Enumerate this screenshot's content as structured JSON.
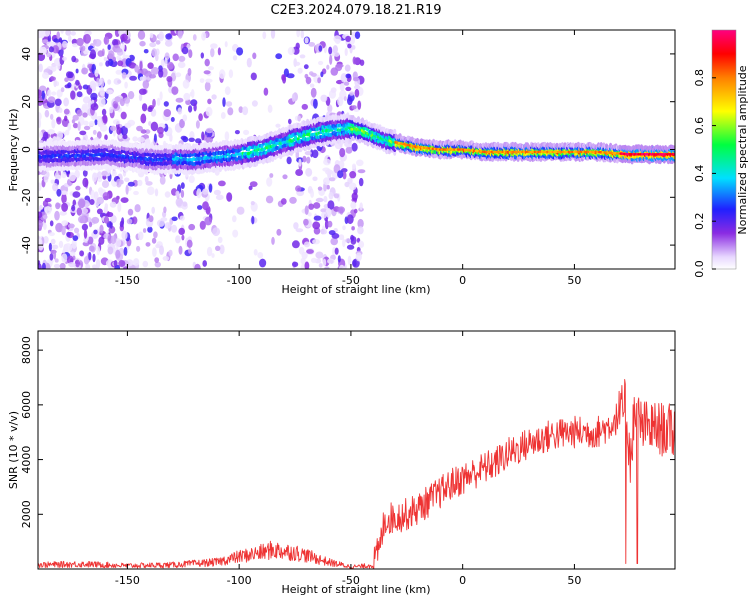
{
  "figure": {
    "title": "C2E3.2024.079.18.21.R19"
  },
  "chart_data": [
    {
      "type": "heatmap",
      "name": "spectrogram",
      "xlabel": "Height of straight line (km)",
      "ylabel": "Frequency (Hz)",
      "xlim": [
        -190,
        95
      ],
      "ylim": [
        -50,
        50
      ],
      "xticks": [
        -150,
        -100,
        -50,
        0,
        50
      ],
      "yticks": [
        -40,
        -20,
        0,
        20,
        40
      ],
      "colorbar": {
        "label": "Normalized spectral amplitude",
        "range": [
          0.0,
          1.0
        ],
        "ticks": [
          0.0,
          0.2,
          0.4,
          0.6,
          0.8
        ]
      },
      "ridge_frequency_hz": {
        "x": [
          -190,
          -160,
          -140,
          -120,
          -100,
          -90,
          -80,
          -70,
          -60,
          -50,
          -45,
          -40,
          -35,
          -30,
          -20,
          -10,
          0,
          10,
          20,
          40,
          60,
          75,
          95
        ],
        "y": [
          -3,
          -2,
          -4,
          -4,
          -2,
          0,
          3,
          6,
          8,
          9,
          8,
          6,
          4,
          3,
          1,
          0,
          0,
          -1,
          -1,
          -1,
          -1,
          -2,
          -2
        ]
      }
    },
    {
      "type": "line",
      "name": "snr",
      "xlabel": "Height of straight line (km)",
      "ylabel": "SNR (10 * v/v)",
      "xlim": [
        -190,
        95
      ],
      "ylim": [
        0,
        8700
      ],
      "xticks": [
        -150,
        -100,
        -50,
        0,
        50
      ],
      "yticks": [
        2000,
        4000,
        6000,
        8000
      ],
      "series": [
        {
          "name": "SNR",
          "color": "#ee3333",
          "x": [
            -190,
            -170,
            -150,
            -130,
            -110,
            -100,
            -90,
            -85,
            -80,
            -75,
            -70,
            -60,
            -50,
            -45,
            -40,
            -37,
            -35,
            -30,
            -25,
            -20,
            -15,
            -10,
            -5,
            0,
            5,
            10,
            15,
            20,
            25,
            30,
            40,
            50,
            60,
            65,
            70,
            73,
            75,
            77,
            80,
            90,
            95
          ],
          "y": [
            150,
            180,
            120,
            150,
            250,
            450,
            600,
            700,
            650,
            600,
            500,
            250,
            80,
            100,
            150,
            800,
            1800,
            1900,
            2000,
            2200,
            2500,
            2800,
            3100,
            3300,
            3500,
            3700,
            3900,
            4200,
            4400,
            4600,
            4900,
            5000,
            5000,
            5200,
            5600,
            6000,
            4000,
            5800,
            5200,
            5100,
            5000
          ]
        }
      ]
    }
  ],
  "colors": {
    "frame": "#000000",
    "snr_line": "#ee3333"
  }
}
